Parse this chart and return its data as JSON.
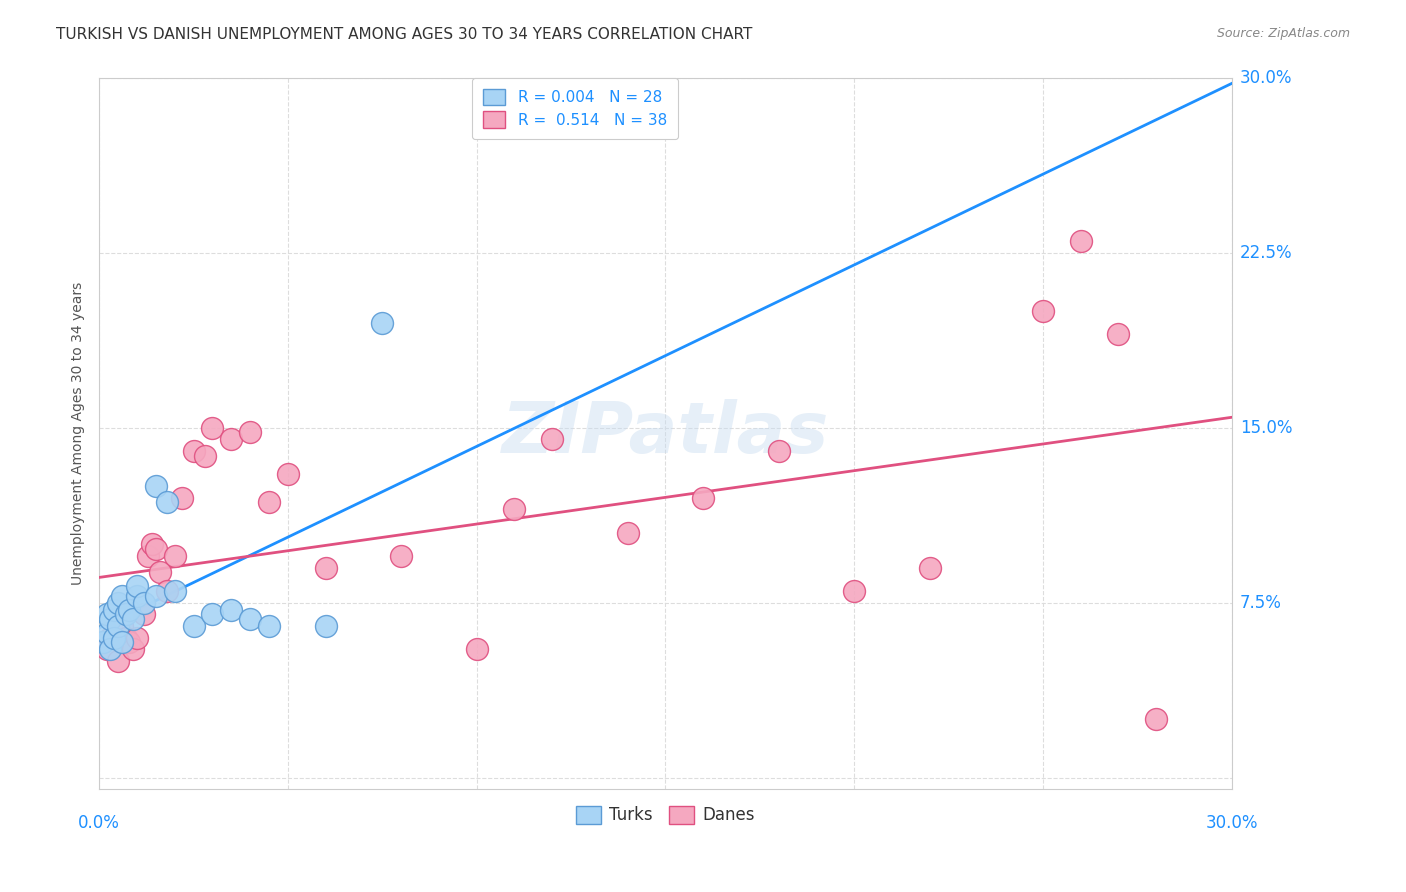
{
  "title": "TURKISH VS DANISH UNEMPLOYMENT AMONG AGES 30 TO 34 YEARS CORRELATION CHART",
  "source": "Source: ZipAtlas.com",
  "ylabel": "Unemployment Among Ages 30 to 34 years",
  "xlim": [
    0.0,
    0.3
  ],
  "ylim": [
    -0.005,
    0.3
  ],
  "xticks": [
    0.0,
    0.05,
    0.1,
    0.15,
    0.2,
    0.25,
    0.3
  ],
  "yticks": [
    0.0,
    0.075,
    0.15,
    0.225,
    0.3
  ],
  "ytick_labels": [
    "",
    "7.5%",
    "15.0%",
    "22.5%",
    "30.0%"
  ],
  "xtick_labels": [
    "0.0%",
    "",
    "",
    "",
    "",
    "",
    "30.0%"
  ],
  "turks_color": "#A8D4F5",
  "danes_color": "#F5A8C0",
  "turks_edge": "#5B9BD5",
  "danes_edge": "#E05080",
  "turk_R": 0.004,
  "turk_N": 28,
  "dane_R": 0.514,
  "dane_N": 38,
  "legend_text_color": "#1E90FF",
  "turks_x": [
    0.001,
    0.002,
    0.002,
    0.003,
    0.003,
    0.004,
    0.004,
    0.005,
    0.005,
    0.006,
    0.006,
    0.007,
    0.008,
    0.009,
    0.01,
    0.01,
    0.012,
    0.015,
    0.015,
    0.018,
    0.02,
    0.025,
    0.03,
    0.035,
    0.04,
    0.045,
    0.06,
    0.075
  ],
  "turks_y": [
    0.058,
    0.062,
    0.07,
    0.055,
    0.068,
    0.06,
    0.072,
    0.065,
    0.075,
    0.058,
    0.078,
    0.07,
    0.072,
    0.068,
    0.078,
    0.082,
    0.075,
    0.078,
    0.125,
    0.118,
    0.08,
    0.065,
    0.07,
    0.072,
    0.068,
    0.065,
    0.065,
    0.195
  ],
  "danes_x": [
    0.001,
    0.002,
    0.003,
    0.005,
    0.006,
    0.007,
    0.008,
    0.009,
    0.01,
    0.012,
    0.013,
    0.014,
    0.015,
    0.016,
    0.018,
    0.02,
    0.022,
    0.025,
    0.028,
    0.03,
    0.035,
    0.04,
    0.045,
    0.05,
    0.06,
    0.08,
    0.1,
    0.11,
    0.12,
    0.14,
    0.16,
    0.18,
    0.2,
    0.22,
    0.25,
    0.26,
    0.27,
    0.28
  ],
  "danes_y": [
    0.058,
    0.055,
    0.06,
    0.05,
    0.065,
    0.06,
    0.058,
    0.055,
    0.06,
    0.07,
    0.095,
    0.1,
    0.098,
    0.088,
    0.08,
    0.095,
    0.12,
    0.14,
    0.138,
    0.15,
    0.145,
    0.148,
    0.118,
    0.13,
    0.09,
    0.095,
    0.055,
    0.115,
    0.145,
    0.105,
    0.12,
    0.14,
    0.08,
    0.09,
    0.2,
    0.23,
    0.19,
    0.025
  ],
  "turk_line_color": "#1E90FF",
  "dane_line_color": "#E05080",
  "turk_line_style": "solid",
  "dane_line_style": "solid",
  "grid_color": "#DDDDDD",
  "background_color": "#FFFFFF",
  "title_fontsize": 11,
  "source_fontsize": 9,
  "ylabel_fontsize": 10,
  "legend_fontsize": 11,
  "watermark_text": "ZIPatlas",
  "watermark_fontsize": 52
}
